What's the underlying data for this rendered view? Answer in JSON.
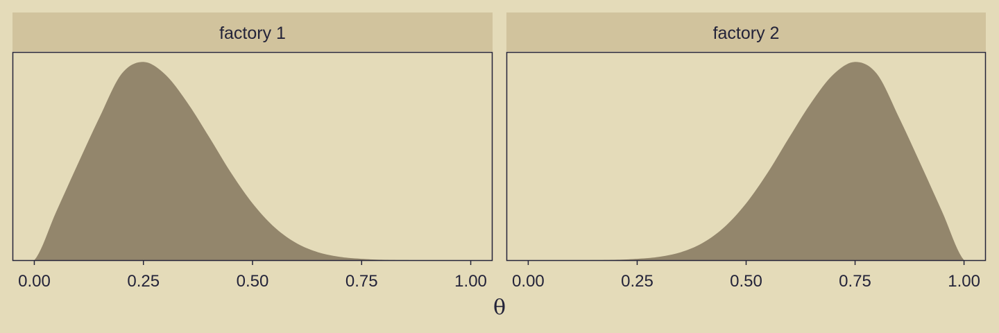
{
  "colors": {
    "background": "#e4dbb9",
    "strip_fill": "#d1c39d",
    "density_fill": "#93866c",
    "axis_ink": "#232339"
  },
  "chart_data": {
    "type": "area",
    "facet_by": "factory",
    "xlabel": "θ",
    "ylabel": "",
    "xlim": [
      -0.05,
      1.05
    ],
    "x_ticks": [
      0,
      0.25,
      0.5,
      0.75,
      1
    ],
    "x_tick_labels": [
      "0.00",
      "0.25",
      "0.50",
      "0.75",
      "1.00"
    ],
    "y_axis_shown": false,
    "grid": false,
    "legend": "none",
    "panels": [
      {
        "title": "factory 1",
        "series": [
          {
            "x": [
              0,
              0.05,
              0.1,
              0.15,
              0.2,
              0.25,
              0.3,
              0.35,
              0.4,
              0.45,
              0.5,
              0.55,
              0.6,
              0.65,
              0.7,
              0.75,
              0.8,
              0.85,
              0.9,
              0.95,
              1
            ],
            "y": [
              0,
              0.73,
              1.46,
              2.17,
              2.82,
              3.0,
              2.81,
              2.39,
              1.87,
              1.33,
              0.86,
              0.5,
              0.26,
              0.12,
              0.05,
              0.02,
              0.005,
              0.001,
              0,
              0,
              0
            ]
          }
        ]
      },
      {
        "title": "factory 2",
        "series": [
          {
            "x": [
              0,
              0.05,
              0.1,
              0.15,
              0.2,
              0.25,
              0.3,
              0.35,
              0.4,
              0.45,
              0.5,
              0.55,
              0.6,
              0.65,
              0.7,
              0.75,
              0.8,
              0.85,
              0.9,
              0.95,
              1
            ],
            "y": [
              0,
              0,
              0,
              0.001,
              0.005,
              0.02,
              0.05,
              0.12,
              0.26,
              0.5,
              0.86,
              1.33,
              1.87,
              2.39,
              2.81,
              3.0,
              2.82,
              2.17,
              1.46,
              0.73,
              0
            ]
          }
        ]
      }
    ]
  }
}
